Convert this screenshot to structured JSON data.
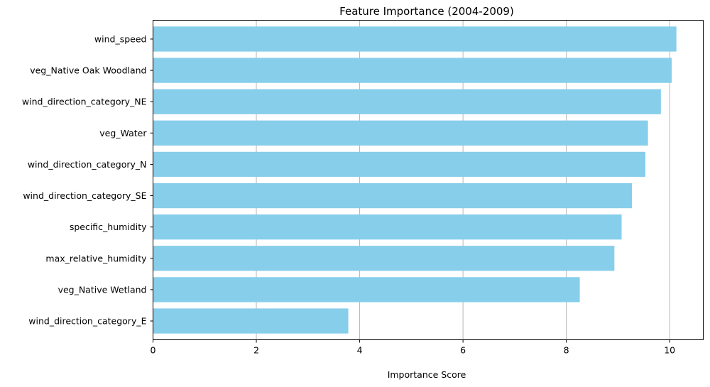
{
  "chart_data": {
    "type": "bar",
    "orientation": "horizontal",
    "title": "Feature Importance (2004-2009)",
    "xlabel": "Importance Score",
    "ylabel": "",
    "xlim": [
      0,
      10.65
    ],
    "xticks": [
      0,
      2,
      4,
      6,
      8,
      10
    ],
    "grid": "x",
    "bar_color": "#87ceeb",
    "categories": [
      "wind_speed",
      "veg_Native Oak Woodland",
      "wind_direction_category_NE",
      "veg_Water",
      "wind_direction_category_N",
      "wind_direction_category_SE",
      "specific_humidity",
      "max_relative_humidity",
      "veg_Native Wetland",
      "wind_direction_category_E"
    ],
    "values": [
      10.13,
      10.04,
      9.83,
      9.58,
      9.53,
      9.27,
      9.07,
      8.93,
      8.26,
      3.78
    ]
  }
}
